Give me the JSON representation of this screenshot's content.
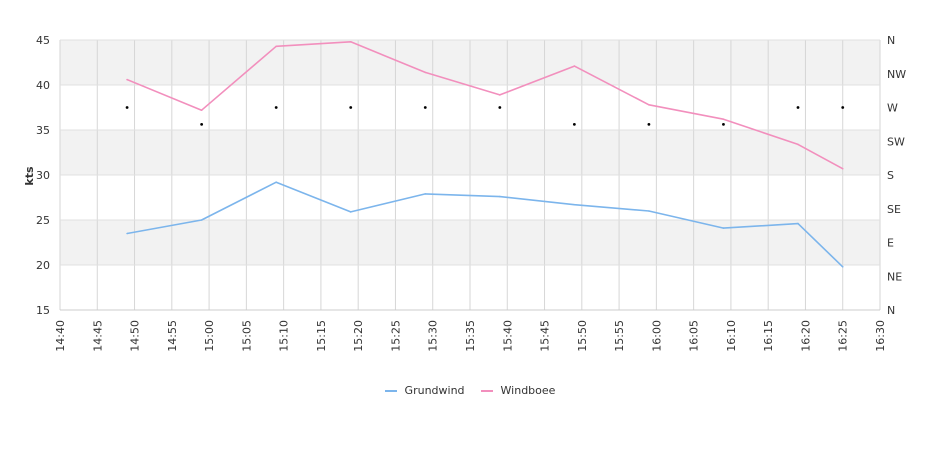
{
  "chart_data": {
    "type": "line",
    "title": "",
    "ylabel": "kts",
    "ylim": [
      15,
      45
    ],
    "y_ticks": [
      "15",
      "20",
      "25",
      "30",
      "35",
      "40",
      "45"
    ],
    "x_ticks": [
      "14:40",
      "14:45",
      "14:50",
      "14:55",
      "15:00",
      "15:05",
      "15:10",
      "15:15",
      "15:20",
      "15:25",
      "15:30",
      "15:35",
      "15:40",
      "15:45",
      "15:50",
      "15:55",
      "16:00",
      "16:05",
      "16:10",
      "16:15",
      "16:20",
      "16:25",
      "16:30"
    ],
    "x_range_minutes": [
      0,
      110
    ],
    "y2_ticks": [
      "N",
      "NW",
      "W",
      "SW",
      "S",
      "SE",
      "E",
      "NE",
      "N"
    ],
    "series": [
      {
        "name": "Grundwind",
        "color": "#7cb5ec",
        "x": [
          "14:49",
          "14:59",
          "15:09",
          "15:19",
          "15:29",
          "15:39",
          "15:49",
          "15:59",
          "16:09",
          "16:19",
          "16:25"
        ],
        "values": [
          23.5,
          25.0,
          29.2,
          25.9,
          27.9,
          27.6,
          26.7,
          26.0,
          24.1,
          24.6,
          19.8
        ]
      },
      {
        "name": "Windboee",
        "color": "#f28fbd",
        "x": [
          "14:49",
          "14:59",
          "15:09",
          "15:19",
          "15:29",
          "15:39",
          "15:49",
          "15:59",
          "16:09",
          "16:19",
          "16:25"
        ],
        "values": [
          40.6,
          37.2,
          44.3,
          44.8,
          41.4,
          38.9,
          42.1,
          37.8,
          36.2,
          33.4,
          30.7
        ]
      }
    ],
    "direction": {
      "x": [
        "14:49",
        "14:59",
        "15:09",
        "15:19",
        "15:29",
        "15:39",
        "15:49",
        "15:59",
        "16:09",
        "16:19",
        "16:25"
      ],
      "values": [
        "W",
        "WSW",
        "W",
        "W",
        "W",
        "W",
        "WSW",
        "WSW",
        "WSW",
        "W",
        "W"
      ]
    },
    "grid": true,
    "legend_position": "bottom-center"
  }
}
